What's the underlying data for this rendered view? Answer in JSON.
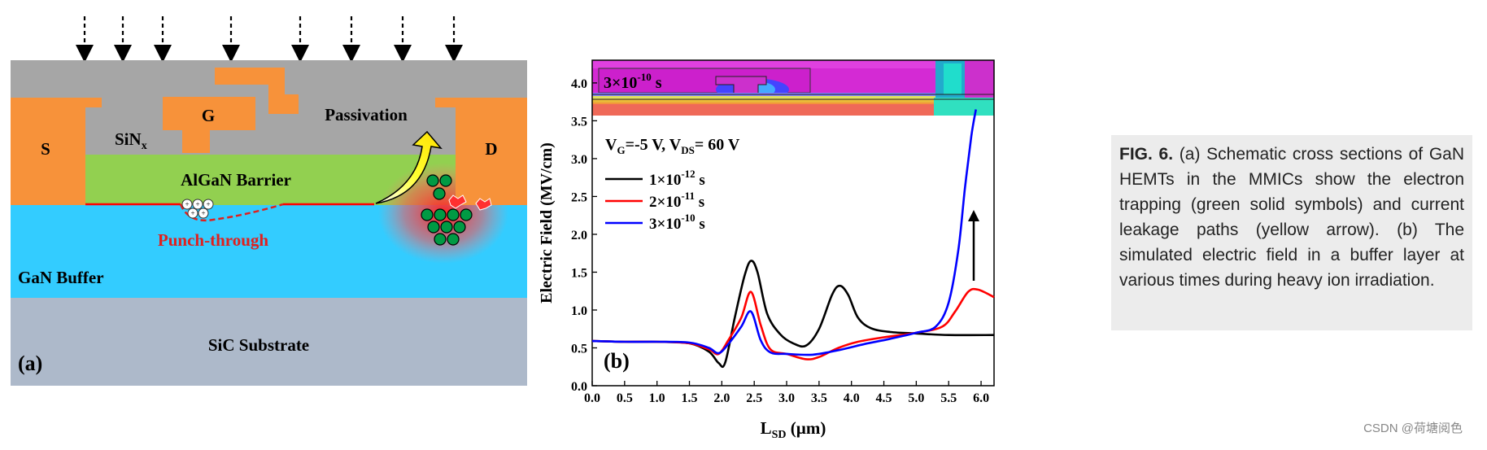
{
  "panel_a": {
    "labels": {
      "source": "S",
      "gate": "G",
      "drain": "D",
      "passivation": "Passivation",
      "sinx": "SiN",
      "sinx_sub": "x",
      "barrier": "AlGaN Barrier",
      "punch": "Punch-through",
      "buffer": "GaN Buffer",
      "substrate": "SiC Substrate",
      "panel": "(a)"
    },
    "colors": {
      "passivation": "#a6a6a6",
      "metal": "#f7923a",
      "barrier": "#92d050",
      "buffer": "#33ccff",
      "substrate": "#adb9ca",
      "channel": "#ff0000",
      "punch_text": "#e0201e",
      "leak_arrow": "#ffff00",
      "trap": "#009a44"
    }
  },
  "panel_b": {
    "inset_label": "3×10",
    "inset_exp": "-10",
    "inset_unit": " s",
    "condition_vg": "V",
    "condition_vg_sub": "G",
    "condition_vg_val": "=-5 V, V",
    "condition_vds_sub": "DS",
    "condition_vds_val": "= 60 V",
    "panel": "(b)"
  },
  "chart_data": {
    "type": "line",
    "xlabel": "L",
    "xlabel_sub": "SD",
    "xlabel_unit": " (µm)",
    "ylabel": "Electric Field (MV/cm)",
    "xlim": [
      0,
      6.2
    ],
    "ylim": [
      0,
      4.3
    ],
    "x_ticks": [
      "0.0",
      "0.5",
      "1.0",
      "1.5",
      "2.0",
      "2.5",
      "3.0",
      "3.5",
      "4.0",
      "4.5",
      "5.0",
      "5.5",
      "6.0"
    ],
    "y_ticks": [
      "0.0",
      "0.5",
      "1.0",
      "1.5",
      "2.0",
      "2.5",
      "3.0",
      "3.5",
      "4.0"
    ],
    "legend_position": "upper-left",
    "series": [
      {
        "name": "1×10-12 s",
        "base": "1×10",
        "exp": "-12",
        "unit": " s",
        "color": "#000000",
        "x": [
          0,
          0.5,
          1.0,
          1.5,
          1.8,
          1.95,
          2.05,
          2.2,
          2.35,
          2.45,
          2.55,
          2.7,
          2.9,
          3.1,
          3.3,
          3.5,
          3.7,
          3.82,
          3.95,
          4.1,
          4.3,
          4.6,
          5.0,
          5.5,
          6.2
        ],
        "y": [
          0.59,
          0.58,
          0.58,
          0.56,
          0.45,
          0.3,
          0.3,
          0.9,
          1.45,
          1.65,
          1.5,
          0.95,
          0.68,
          0.56,
          0.53,
          0.75,
          1.2,
          1.32,
          1.2,
          0.9,
          0.76,
          0.71,
          0.69,
          0.67,
          0.67
        ]
      },
      {
        "name": "2×10-11 s",
        "base": "2×10",
        "exp": "-11",
        "unit": " s",
        "color": "#ff0000",
        "x": [
          0,
          0.5,
          1.0,
          1.5,
          1.8,
          1.95,
          2.1,
          2.3,
          2.45,
          2.6,
          2.75,
          3.0,
          3.3,
          3.5,
          3.8,
          4.1,
          4.5,
          5.0,
          5.4,
          5.6,
          5.8,
          5.95,
          6.2
        ],
        "y": [
          0.59,
          0.58,
          0.58,
          0.56,
          0.48,
          0.42,
          0.6,
          0.9,
          1.24,
          0.8,
          0.48,
          0.42,
          0.35,
          0.38,
          0.5,
          0.58,
          0.64,
          0.7,
          0.78,
          0.98,
          1.24,
          1.27,
          1.17
        ]
      },
      {
        "name": "3×10-10 s",
        "base": "3×10",
        "exp": "-10",
        "unit": " s",
        "color": "#0000ff",
        "x": [
          0,
          0.5,
          1.0,
          1.5,
          1.8,
          1.95,
          2.1,
          2.3,
          2.45,
          2.6,
          2.75,
          3.0,
          3.4,
          3.8,
          4.2,
          4.6,
          5.0,
          5.3,
          5.5,
          5.65,
          5.75,
          5.85,
          5.92
        ],
        "y": [
          0.59,
          0.58,
          0.58,
          0.57,
          0.5,
          0.43,
          0.55,
          0.78,
          0.98,
          0.6,
          0.44,
          0.42,
          0.41,
          0.47,
          0.55,
          0.62,
          0.7,
          0.78,
          1.1,
          1.8,
          2.6,
          3.3,
          3.65
        ]
      }
    ]
  },
  "caption": {
    "label": "FIG. 6.",
    "text": " (a) Schematic cross sections of GaN HEMTs in the MMICs show the electron trapping (green solid symbols) and current leakage paths (yellow arrow). (b) The simulated electric field in a buffer layer at various times during heavy ion irradiation."
  },
  "watermark": "CSDN @荷塘阅色"
}
